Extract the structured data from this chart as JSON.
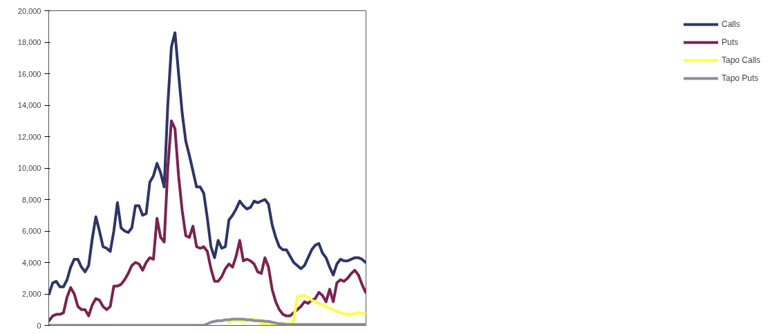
{
  "chart_data": {
    "type": "line",
    "categories": [
      null,
      null,
      null,
      null,
      null,
      null,
      null,
      null,
      null,
      null,
      null,
      null,
      null,
      null,
      null,
      null,
      null,
      null,
      null,
      null,
      null,
      null,
      null,
      null,
      null,
      null,
      null,
      null,
      null,
      null,
      null,
      null,
      null,
      null,
      null,
      null,
      null,
      null,
      null,
      null,
      null,
      null,
      null,
      null,
      null,
      null,
      null,
      null,
      null,
      null,
      null,
      null,
      null,
      null,
      null,
      null,
      null,
      null,
      null,
      null,
      null,
      null,
      null,
      null,
      null,
      null,
      null,
      null,
      null,
      null,
      null,
      null,
      null,
      null,
      null,
      null,
      null,
      null,
      null,
      null,
      null,
      null,
      null,
      null,
      null,
      null,
      null,
      null,
      null
    ],
    "series": [
      {
        "name": "Calls",
        "color": "#2e3566",
        "values": [
          2000,
          2700,
          2800,
          2450,
          2450,
          2900,
          3700,
          4200,
          4200,
          3700,
          3400,
          3800,
          5500,
          6900,
          6000,
          5000,
          4900,
          4700,
          6000,
          7800,
          6200,
          6000,
          5900,
          6200,
          7600,
          7600,
          7000,
          7100,
          9100,
          9500,
          10300,
          9700,
          8800,
          14000,
          17700,
          18600,
          16000,
          13500,
          11700,
          10800,
          9800,
          8800,
          8800,
          8400,
          6800,
          5000,
          4300,
          5400,
          4900,
          5000,
          6700,
          7000,
          7400,
          7900,
          7600,
          7400,
          7500,
          7900,
          7800,
          7900,
          8000,
          7700,
          6400,
          5600,
          5000,
          4800,
          4800,
          4400,
          4000,
          3800,
          3600,
          3800,
          4300,
          4800,
          5100,
          5200,
          4600,
          4300,
          3700,
          3200,
          3900,
          4200,
          4100,
          4100,
          4200,
          4300,
          4300,
          4200,
          4000
        ]
      },
      {
        "name": "Puts",
        "color": "#7a2350",
        "values": [
          300,
          600,
          700,
          700,
          800,
          1800,
          2400,
          2000,
          1200,
          1000,
          1000,
          600,
          1300,
          1700,
          1600,
          1200,
          1000,
          1200,
          2500,
          2500,
          2600,
          2900,
          3300,
          3800,
          4000,
          3900,
          3500,
          4000,
          4300,
          4200,
          6800,
          5600,
          5300,
          10000,
          13000,
          12500,
          9500,
          7300,
          5700,
          5600,
          6300,
          5000,
          4900,
          5000,
          4700,
          3600,
          2800,
          2800,
          3100,
          3600,
          3900,
          3700,
          4400,
          5400,
          4100,
          4200,
          4100,
          3900,
          3400,
          3300,
          4300,
          3700,
          2300,
          1500,
          1000,
          700,
          600,
          600,
          800,
          1000,
          1200,
          1500,
          1400,
          1600,
          1700,
          2100,
          1900,
          1500,
          2300,
          1500,
          2700,
          2900,
          2800,
          3000,
          3300,
          3500,
          3200,
          2600,
          2100
        ]
      },
      {
        "name": "Tapo Calls",
        "color": "#ffff44",
        "values": [
          null,
          null,
          null,
          null,
          null,
          null,
          null,
          null,
          null,
          null,
          null,
          null,
          null,
          null,
          null,
          null,
          null,
          null,
          null,
          null,
          null,
          null,
          null,
          null,
          null,
          null,
          null,
          null,
          null,
          null,
          null,
          null,
          null,
          null,
          null,
          null,
          null,
          null,
          null,
          null,
          null,
          null,
          null,
          null,
          null,
          null,
          null,
          null,
          null,
          null,
          200,
          300,
          300,
          300,
          250,
          300,
          400,
          400,
          300,
          100,
          100,
          100,
          100,
          100,
          100,
          100,
          100,
          100,
          300,
          1800,
          1900,
          1900,
          1800,
          1600,
          1500,
          1400,
          1300,
          1200,
          1100,
          1000,
          900,
          800,
          750,
          700,
          700,
          750,
          800,
          750,
          750
        ]
      },
      {
        "name": "Tapo Puts",
        "color": "#8a8f9c",
        "values": [
          0,
          0,
          0,
          0,
          0,
          0,
          0,
          0,
          0,
          0,
          0,
          0,
          0,
          0,
          0,
          0,
          0,
          0,
          0,
          0,
          0,
          0,
          0,
          0,
          0,
          0,
          0,
          0,
          0,
          0,
          0,
          0,
          0,
          0,
          0,
          0,
          0,
          0,
          0,
          0,
          0,
          0,
          0,
          0,
          100,
          200,
          250,
          300,
          300,
          350,
          350,
          400,
          400,
          400,
          400,
          350,
          350,
          300,
          300,
          300,
          250,
          250,
          200,
          150,
          100,
          100,
          50,
          50,
          50,
          50,
          50,
          50,
          50,
          50,
          50,
          50,
          50,
          50,
          50,
          50,
          50,
          50,
          50,
          50,
          50,
          50,
          50,
          50,
          50
        ]
      }
    ],
    "ylim": [
      0,
      20000
    ],
    "yticks": [
      {
        "value": 0,
        "label": "0"
      },
      {
        "value": 2000,
        "label": "2,000"
      },
      {
        "value": 4000,
        "label": "4,000"
      },
      {
        "value": 6000,
        "label": "6,000"
      },
      {
        "value": 8000,
        "label": "8,000"
      },
      {
        "value": 10000,
        "label": "10,000"
      },
      {
        "value": 12000,
        "label": "12,000"
      },
      {
        "value": 14000,
        "label": "14,000"
      },
      {
        "value": 16000,
        "label": "16,000"
      },
      {
        "value": 18000,
        "label": "18,000"
      },
      {
        "value": 20000,
        "label": "20,000"
      }
    ],
    "tick_labels": "y",
    "legend": "right",
    "marker": "none",
    "line_style": "solid"
  }
}
